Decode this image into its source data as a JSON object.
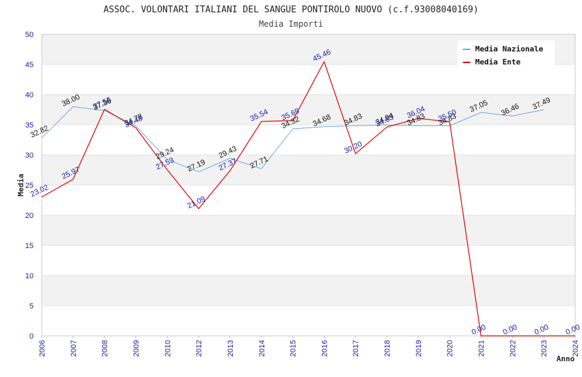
{
  "chart_data": {
    "type": "line",
    "title": "ASSOC. VOLONTARI ITALIANI DEL SANGUE PONTIROLO NUOVO (c.f.93008040169)",
    "subtitle": "Media Importi",
    "xlabel": "Anno",
    "ylabel": "Media",
    "ylim": [
      0,
      50
    ],
    "yticks": [
      "0",
      "5",
      "10",
      "15",
      "20",
      "25",
      "30",
      "35",
      "40",
      "45",
      "50"
    ],
    "categories": [
      "2006",
      "2007",
      "2008",
      "2009",
      "2010",
      "2012",
      "2013",
      "2014",
      "2015",
      "2016",
      "2017",
      "2018",
      "2019",
      "2020",
      "2021",
      "2022",
      "2023",
      "2024"
    ],
    "grid": true,
    "legend_position": "top-right",
    "series": [
      {
        "name": "Media Nazionale",
        "color": "#6fa8dc",
        "values": [
          32.82,
          38.0,
          37.36,
          34.78,
          29.24,
          27.19,
          29.43,
          27.71,
          34.32,
          34.68,
          34.83,
          34.94,
          34.83,
          34.83,
          37.05,
          36.46,
          37.49,
          null
        ],
        "labels": [
          "32.82",
          "38.00",
          "37.36",
          "34.78",
          "29.24",
          "27.19",
          "29.43",
          "27.71",
          "34.32",
          "34.68",
          "34.83",
          "34.94",
          "34.83",
          "34.83",
          "37.05",
          "36.46",
          "37.49",
          ""
        ]
      },
      {
        "name": "Media Ente",
        "color": "#dd0000",
        "values": [
          23.02,
          25.97,
          37.56,
          34.48,
          27.53,
          21.09,
          27.37,
          35.54,
          35.69,
          45.46,
          30.2,
          34.63,
          36.04,
          35.5,
          0.0,
          0.0,
          0.0,
          0.0
        ],
        "labels": [
          "23.02",
          "25.97",
          "37.56",
          "34.48",
          "27.53",
          "21.09",
          "27.37",
          "35.54",
          "35.69",
          "45.46",
          "30.20",
          "34.63",
          "36.04",
          "35.50",
          "0.00",
          "0.00",
          "0.00",
          "0.00"
        ]
      }
    ]
  }
}
